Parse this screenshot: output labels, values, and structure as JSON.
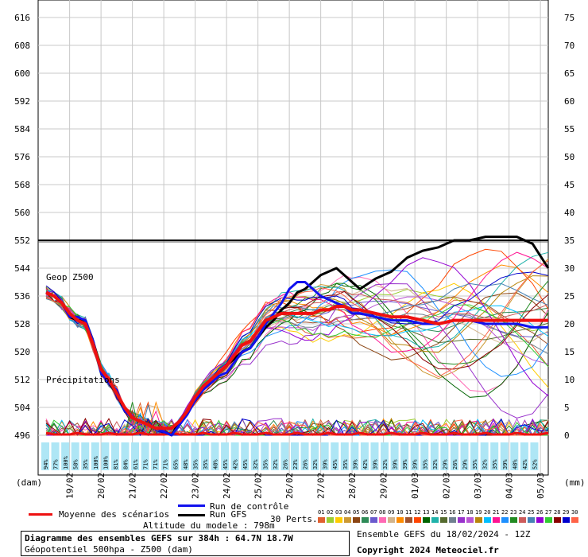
{
  "chart_data": {
    "type": "line",
    "left_axis": {
      "unit": "(dam)",
      "ticks": [
        496,
        504,
        512,
        520,
        528,
        536,
        544,
        552,
        560,
        568,
        576,
        584,
        592,
        600,
        608,
        616
      ],
      "range": [
        492,
        618
      ]
    },
    "right_axis": {
      "unit": "(mm)",
      "ticks": [
        0,
        5,
        10,
        15,
        20,
        25,
        30,
        35,
        40,
        45,
        50,
        55,
        60,
        65,
        70,
        75
      ]
    },
    "x_labels": [
      "19/02",
      "20/02",
      "21/02",
      "22/02",
      "23/02",
      "24/02",
      "25/02",
      "26/02",
      "27/02",
      "28/02",
      "29/02",
      "01/03",
      "02/03",
      "03/03",
      "04/03",
      "05/03"
    ],
    "x_range_hours": [
      0,
      384
    ],
    "reference_line": 552,
    "annotations": {
      "geop": "Geop Z500",
      "precip": "Précipitations"
    },
    "precip_probabilities": [
      "94%",
      "77%",
      "100%",
      "58%",
      "35%",
      "100%",
      "100%",
      "81%",
      "84%",
      "61%",
      "71%",
      "71%",
      "71%",
      "65%",
      "48%",
      "35%",
      "35%",
      "48%",
      "45%",
      "42%",
      "45%",
      "32%",
      "35%",
      "32%",
      "26%",
      "23%",
      "26%",
      "32%",
      "39%",
      "45%",
      "35%",
      "39%",
      "42%",
      "39%",
      "32%",
      "39%",
      "39%",
      "39%",
      "35%",
      "32%",
      "29%",
      "26%",
      "29%",
      "35%",
      "32%",
      "35%",
      "39%",
      "48%",
      "42%",
      "52%"
    ],
    "series": [
      {
        "name": "Moyenne des scénarios",
        "color": "#ee1111",
        "x": [
          0,
          6,
          12,
          18,
          24,
          30,
          36,
          42,
          48,
          54,
          60,
          66,
          72,
          78,
          84,
          90,
          96,
          102,
          108,
          114,
          120,
          126,
          132,
          138,
          144,
          150,
          156,
          162,
          168,
          174,
          180,
          186,
          192,
          198,
          204,
          210,
          216,
          222,
          228,
          234,
          240,
          252,
          264,
          276,
          288,
          300,
          312,
          324,
          336,
          348,
          360,
          372,
          384
        ],
        "y": [
          537,
          536,
          534,
          531,
          529,
          528,
          522,
          515,
          512,
          508,
          504,
          501,
          500,
          499,
          498,
          498,
          498,
          500,
          503,
          507,
          510,
          512,
          514,
          516,
          519,
          522,
          523,
          526,
          529,
          530,
          531,
          531,
          531,
          531,
          531,
          532,
          532,
          533,
          533,
          532,
          532,
          531,
          530,
          530,
          529,
          528,
          529,
          529,
          529,
          529,
          529,
          529,
          529
        ]
      },
      {
        "name": "Run de contrôle",
        "color": "#1111ee",
        "x": [
          0,
          6,
          12,
          18,
          24,
          30,
          36,
          42,
          48,
          54,
          60,
          66,
          72,
          78,
          84,
          90,
          96,
          102,
          108,
          114,
          120,
          126,
          132,
          138,
          144,
          150,
          156,
          162,
          168,
          174,
          180,
          186,
          192,
          198,
          204,
          210,
          216,
          222,
          228,
          234,
          240,
          252,
          264,
          276,
          288,
          300,
          312,
          324,
          336,
          348,
          360,
          372,
          384
        ],
        "y": [
          537,
          536,
          534,
          530,
          530,
          529,
          523,
          514,
          511,
          509,
          503,
          501,
          500,
          499,
          498,
          497,
          496,
          499,
          502,
          506,
          509,
          511,
          513,
          514,
          517,
          520,
          521,
          524,
          528,
          531,
          534,
          538,
          540,
          540,
          538,
          536,
          535,
          534,
          533,
          531,
          531,
          530,
          529,
          529,
          528,
          528,
          529,
          529,
          528,
          528,
          528,
          527,
          527
        ]
      },
      {
        "name": "Run GFS",
        "color": "#000000",
        "x": [
          0,
          6,
          12,
          18,
          24,
          30,
          36,
          42,
          48,
          54,
          60,
          66,
          72,
          78,
          84,
          90,
          96,
          102,
          108,
          114,
          120,
          126,
          132,
          138,
          144,
          150,
          156,
          162,
          168,
          174,
          180,
          186,
          192,
          198,
          204,
          210,
          216,
          222,
          228,
          234,
          240,
          252,
          264,
          276,
          288,
          300,
          312,
          324,
          336,
          348,
          360,
          372,
          384
        ],
        "y": [
          537,
          536,
          534,
          530,
          529,
          529,
          523,
          515,
          511,
          508,
          503,
          501,
          500,
          499,
          498,
          497,
          496,
          500,
          503,
          507,
          510,
          512,
          514,
          516,
          518,
          520,
          521,
          524,
          527,
          529,
          532,
          534,
          537,
          538,
          540,
          542,
          543,
          544,
          542,
          540,
          538,
          541,
          543,
          547,
          549,
          550,
          552,
          552,
          553,
          553,
          553,
          551,
          544
        ]
      }
    ],
    "members_label": "30 Perts.",
    "member_ids": [
      "01",
      "02",
      "03",
      "04",
      "05",
      "06",
      "07",
      "08",
      "09",
      "10",
      "11",
      "12",
      "13",
      "14",
      "15",
      "16",
      "17",
      "18",
      "19",
      "20",
      "21",
      "22",
      "23",
      "24",
      "25",
      "26",
      "27",
      "28",
      "29",
      "30"
    ],
    "member_colors": [
      "#e06030",
      "#9acd32",
      "#ffcc00",
      "#cc9933",
      "#8b4513",
      "#2e8b57",
      "#6a5acd",
      "#ff69b4",
      "#d2b48c",
      "#ff8c00",
      "#a0522d",
      "#ff4500",
      "#006400",
      "#20b2aa",
      "#556b2f",
      "#708090",
      "#9932cc",
      "#ba55d3",
      "#b8860b",
      "#00bfff",
      "#ff1493",
      "#1e90ff",
      "#228b22",
      "#cd5c5c",
      "#4682b4",
      "#9400d3",
      "#32cd32",
      "#8b0000",
      "#0000cd",
      "#ff6347"
    ]
  },
  "legend": {
    "mean": "Moyenne des scénarios",
    "control": "Run de contrôle",
    "gfs": "Run GFS",
    "altitude": "Altitude du modele : 798m"
  },
  "footer": {
    "title": "Diagramme des ensembles GEFS sur 384h : 64.7N 18.7W",
    "subtitle": "Géopotentiel 500hpa - Z500 (dam)",
    "run": "Ensemble GEFS du 18/02/2024 - 12Z",
    "copyright": "Copyright 2024 Meteociel.fr"
  }
}
